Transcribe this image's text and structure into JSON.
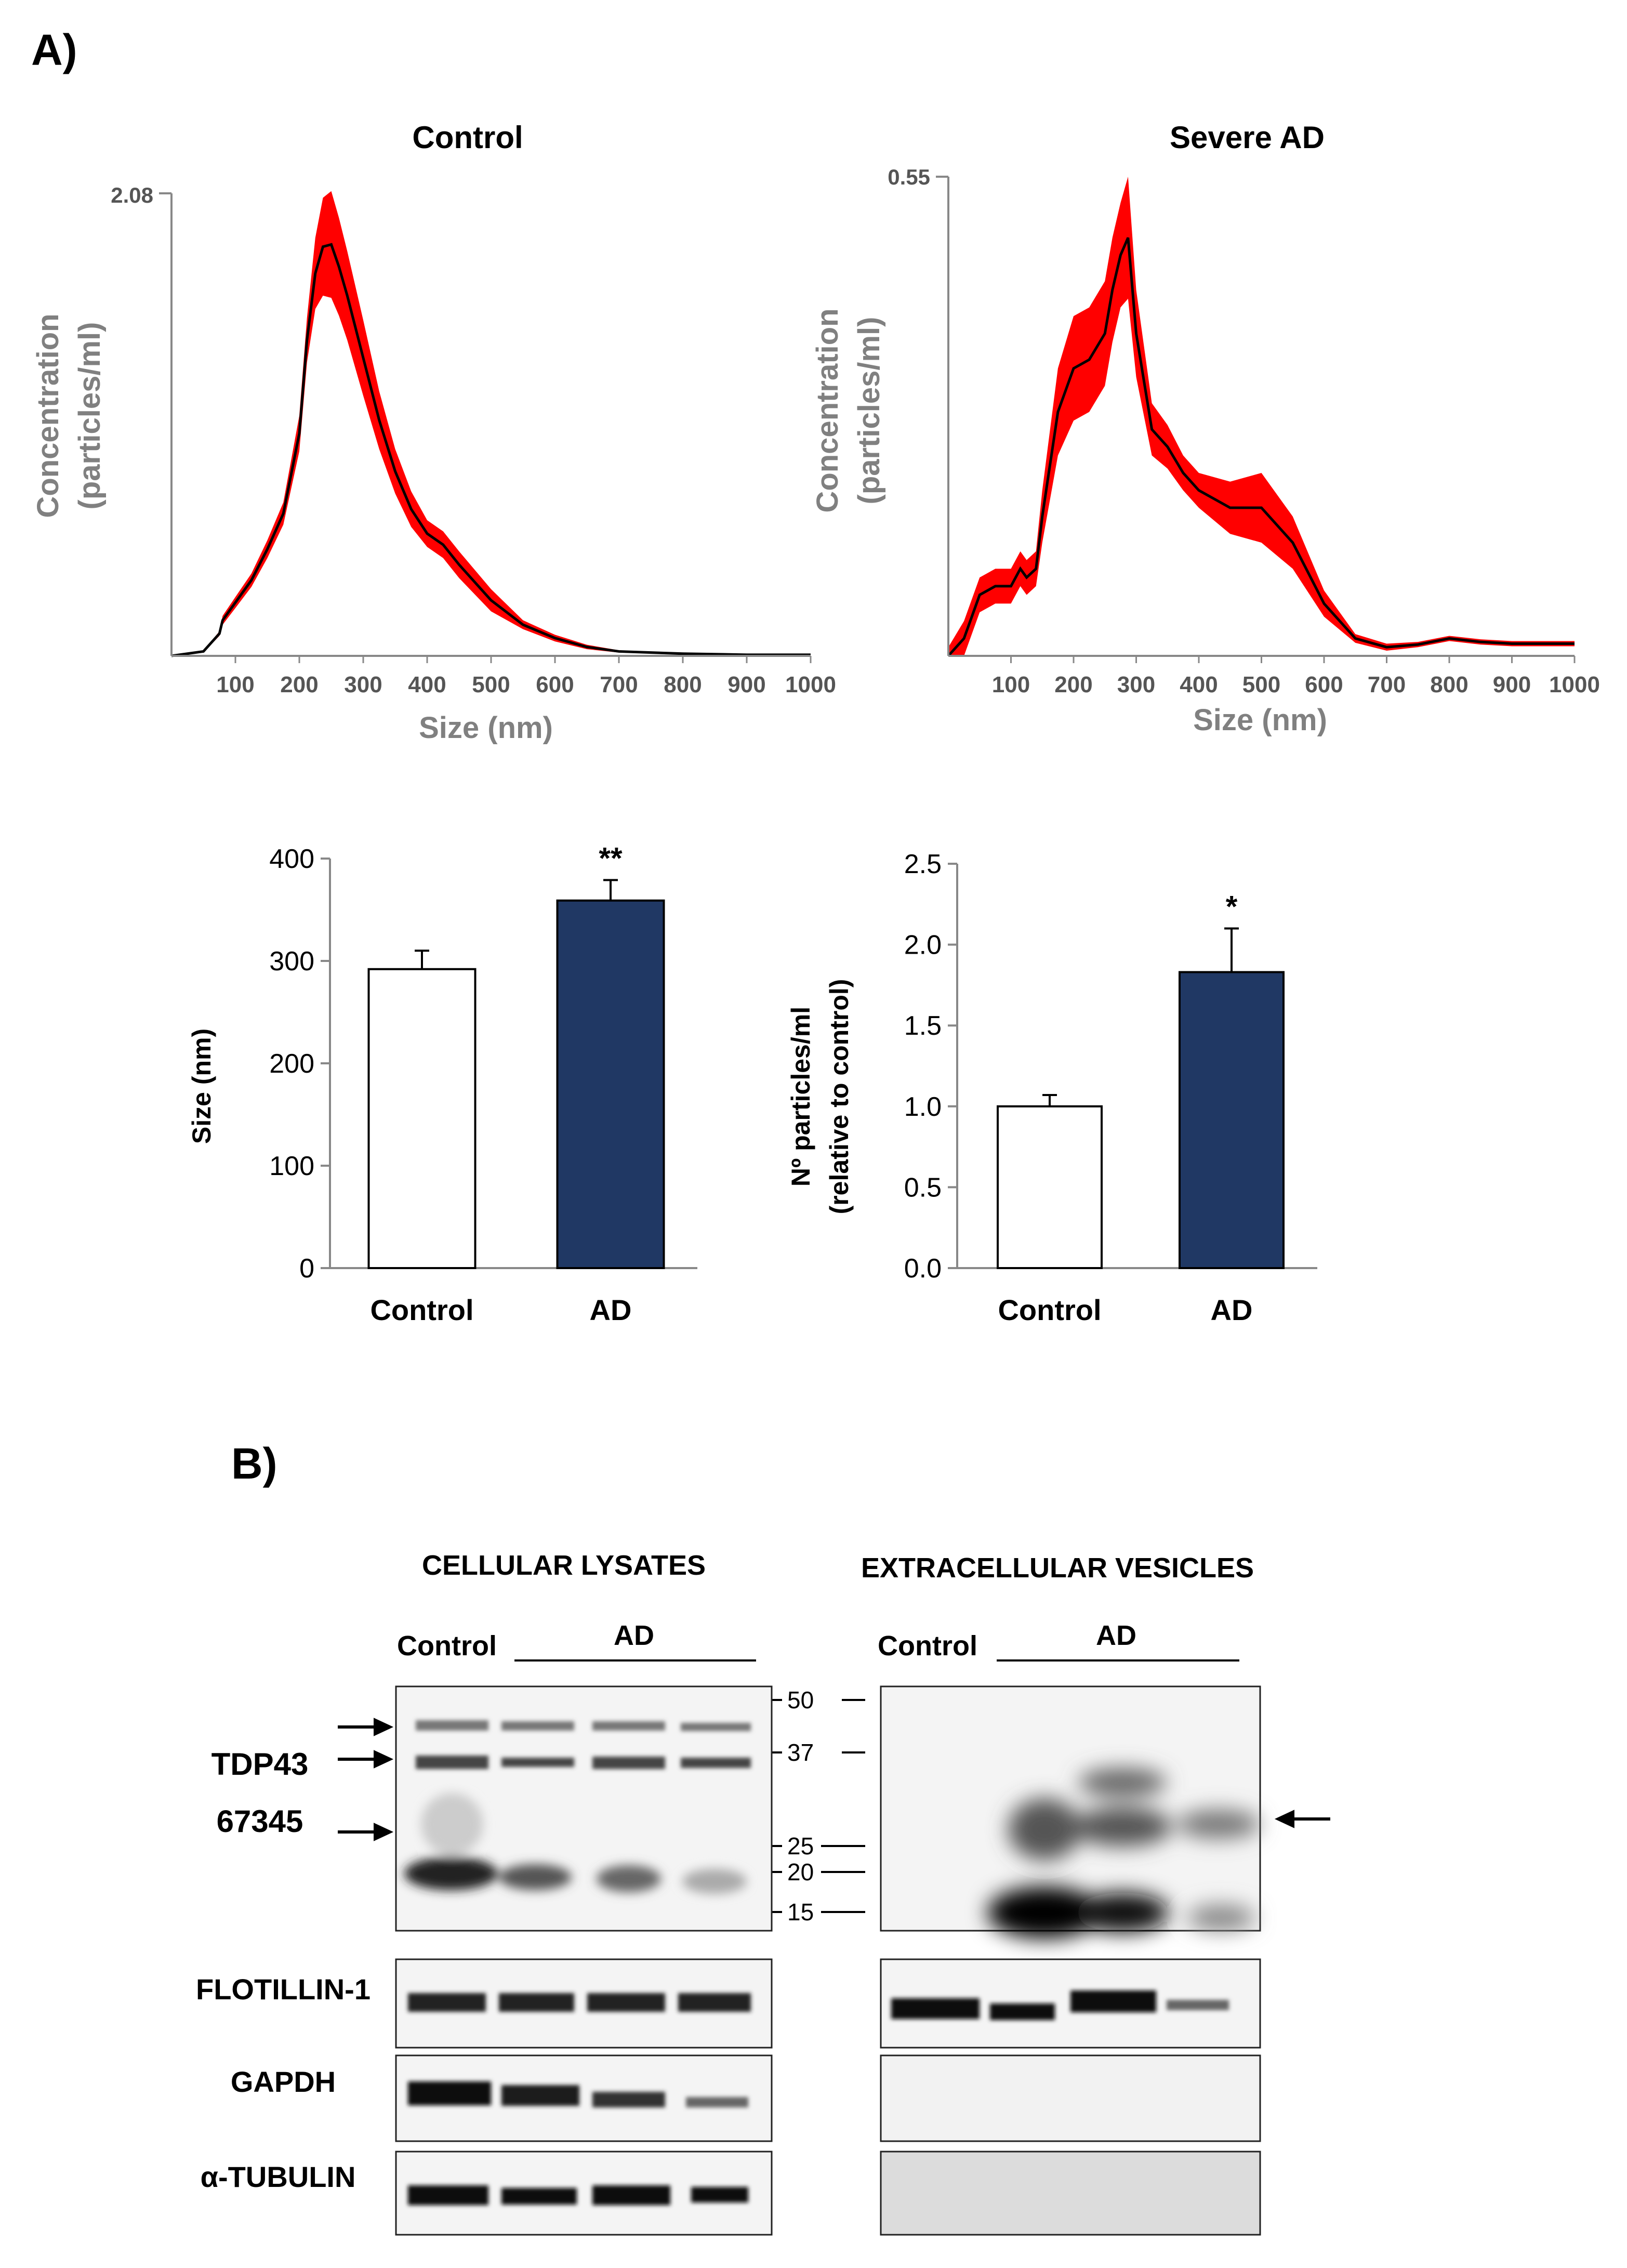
{
  "panel_a": {
    "label": "A)",
    "nta_control": {
      "title": "Control",
      "ymax_label": "2.08",
      "ylabel_line1": "Concentration",
      "ylabel_line2": "(particles/ml)",
      "xlabel": "Size (nm)",
      "x_ticks": [
        "100",
        "200",
        "300",
        "400",
        "500",
        "600",
        "700",
        "800",
        "900",
        "1000"
      ]
    },
    "nta_ad": {
      "title": "Severe AD",
      "ymax_label": "0.55",
      "ylabel_line1": "Concentration",
      "ylabel_line2": "(particles/ml)",
      "xlabel": "Size (nm)",
      "x_ticks": [
        "100",
        "200",
        "300",
        "400",
        "500",
        "600",
        "700",
        "800",
        "900",
        "1000"
      ]
    },
    "bar_size": {
      "ylabel": "Size (nm)",
      "y_ticks": [
        "0",
        "100",
        "200",
        "300",
        "400"
      ],
      "categories": [
        "Control",
        "AD"
      ],
      "significance": "**"
    },
    "bar_particles": {
      "ylabel_line1": "Nº particles/ml",
      "ylabel_line2": "(relative to control)",
      "y_ticks": [
        "0.0",
        "0.5",
        "1.0",
        "1.5",
        "2.0",
        "2.5"
      ],
      "categories": [
        "Control",
        "AD"
      ],
      "significance": "*"
    }
  },
  "panel_b": {
    "label": "B)",
    "lysates_title": "CELLULAR LYSATES",
    "vesicles_title": "EXTRACELLULAR VESICLES",
    "control_label": "Control",
    "ad_label": "AD",
    "rows": [
      "TDP43",
      "FLOTILLIN-1",
      "GAPDH",
      "α-TUBULIN"
    ],
    "tdp43_subtitle": "67345",
    "markers": [
      "50",
      "37",
      "25",
      "20",
      "15"
    ]
  },
  "colors": {
    "control_bar": "#ffffff",
    "ad_bar": "#203864",
    "error_band": "#ff0000",
    "mean_line": "#000000"
  },
  "chart_data": [
    {
      "type": "area",
      "title": "Control",
      "xlabel": "Size (nm)",
      "ylabel": "Concentration (particles/ml)",
      "xlim": [
        0,
        1000
      ],
      "ylim": [
        0,
        2.08
      ],
      "x": [
        0,
        50,
        75,
        80,
        100,
        125,
        150,
        175,
        200,
        212,
        225,
        237,
        250,
        262,
        275,
        300,
        325,
        350,
        375,
        400,
        425,
        450,
        500,
        550,
        600,
        650,
        700,
        800,
        900,
        1000
      ],
      "mean": [
        0,
        0.02,
        0.1,
        0.16,
        0.24,
        0.34,
        0.48,
        0.64,
        1.0,
        1.42,
        1.72,
        1.84,
        1.85,
        1.75,
        1.62,
        1.34,
        1.06,
        0.83,
        0.66,
        0.55,
        0.5,
        0.41,
        0.25,
        0.14,
        0.08,
        0.04,
        0.02,
        0.01,
        0.005,
        0.005
      ],
      "error": [
        0,
        0.005,
        0.01,
        0.02,
        0.025,
        0.03,
        0.04,
        0.05,
        0.08,
        0.1,
        0.16,
        0.22,
        0.24,
        0.22,
        0.2,
        0.17,
        0.13,
        0.1,
        0.08,
        0.06,
        0.06,
        0.06,
        0.05,
        0.02,
        0.015,
        0.01,
        0.005,
        0.003,
        0.002,
        0.002
      ]
    },
    {
      "type": "area",
      "title": "Severe AD",
      "xlabel": "Size (nm)",
      "ylabel": "Concentration (particles/ml)",
      "xlim": [
        0,
        1000
      ],
      "ylim": [
        0,
        0.55
      ],
      "x": [
        0,
        25,
        50,
        75,
        100,
        115,
        125,
        140,
        150,
        175,
        200,
        225,
        250,
        262,
        275,
        287,
        300,
        325,
        350,
        375,
        400,
        450,
        500,
        550,
        600,
        650,
        700,
        750,
        800,
        850,
        900,
        950,
        1000
      ],
      "mean": [
        0,
        0.02,
        0.07,
        0.08,
        0.08,
        0.1,
        0.09,
        0.1,
        0.16,
        0.28,
        0.33,
        0.34,
        0.37,
        0.42,
        0.46,
        0.48,
        0.37,
        0.26,
        0.24,
        0.21,
        0.19,
        0.17,
        0.17,
        0.13,
        0.06,
        0.02,
        0.01,
        0.013,
        0.02,
        0.016,
        0.014,
        0.014,
        0.014
      ],
      "error": [
        0.01,
        0.02,
        0.02,
        0.02,
        0.02,
        0.02,
        0.02,
        0.02,
        0.03,
        0.05,
        0.06,
        0.06,
        0.06,
        0.06,
        0.06,
        0.07,
        0.05,
        0.03,
        0.025,
        0.02,
        0.02,
        0.03,
        0.04,
        0.03,
        0.015,
        0.005,
        0.004,
        0.003,
        0.003,
        0.003,
        0.003,
        0.003,
        0.003
      ]
    },
    {
      "type": "bar",
      "title": "",
      "categories": [
        "Control",
        "AD"
      ],
      "values": [
        292,
        359
      ],
      "errors": [
        18,
        20
      ],
      "xlabel": "",
      "ylabel": "Size (nm)",
      "ylim": [
        0,
        400
      ],
      "significance": [
        "",
        "**"
      ]
    },
    {
      "type": "bar",
      "title": "",
      "categories": [
        "Control",
        "AD"
      ],
      "values": [
        1.0,
        1.83
      ],
      "errors": [
        0.07,
        0.27
      ],
      "xlabel": "",
      "ylabel": "Nº particles/ml (relative to control)",
      "ylim": [
        0,
        2.5
      ],
      "significance": [
        "",
        "*"
      ]
    }
  ]
}
